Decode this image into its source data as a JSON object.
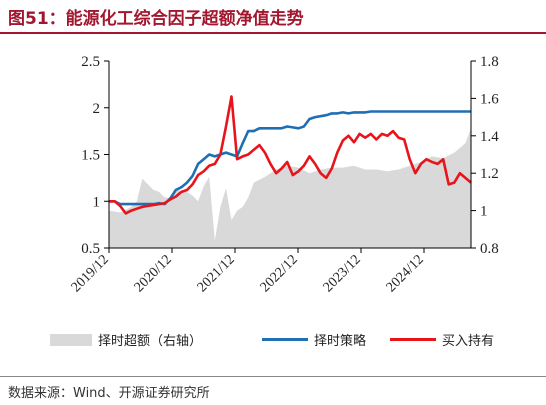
{
  "title": "图51：能源化工综合因子超额净值走势",
  "source": "数据来源：Wind、开源证券研究所",
  "colors": {
    "title": "#a2172f",
    "excess": "#d9d9d9",
    "timing": "#1f6fb5",
    "hold": "#e8141b"
  },
  "chart_data": {
    "type": "line",
    "x_ticks": [
      "2019/12",
      "2020/12",
      "2021/12",
      "2022/12",
      "2023/12",
      "2024/12"
    ],
    "x_range": [
      "2019-12",
      "2025-05"
    ],
    "ylim_left": [
      0.5,
      2.5
    ],
    "yticks_left": [
      "0.5",
      "1",
      "1.5",
      "2",
      "2.5"
    ],
    "ylim_right": [
      0.8,
      1.8
    ],
    "yticks_right": [
      "0.8",
      "1",
      "1.2",
      "1.4",
      "1.6",
      "1.8"
    ],
    "grid": false,
    "legend_position": "bottom",
    "series": [
      {
        "name": "择时超额（右轴）",
        "type": "area",
        "axis": "right",
        "x": [
          0,
          2,
          4,
          5,
          6,
          7,
          8,
          9,
          10,
          11,
          12,
          13,
          14,
          15,
          16,
          17,
          18,
          19,
          20,
          21,
          22,
          23,
          24,
          25,
          26,
          28,
          30,
          32,
          34,
          36,
          38,
          40,
          42,
          44,
          46,
          48,
          50,
          52,
          54,
          56,
          58,
          60,
          62,
          64,
          65
        ],
        "y": [
          1.0,
          0.99,
          1.02,
          1.05,
          1.17,
          1.14,
          1.11,
          1.1,
          1.07,
          1.07,
          1.12,
          1.1,
          1.1,
          1.08,
          1.05,
          1.13,
          1.18,
          0.84,
          1.02,
          1.12,
          0.95,
          1.0,
          1.02,
          1.07,
          1.15,
          1.18,
          1.22,
          1.24,
          1.23,
          1.2,
          1.22,
          1.23,
          1.23,
          1.24,
          1.22,
          1.22,
          1.21,
          1.22,
          1.24,
          1.26,
          1.29,
          1.28,
          1.31,
          1.36,
          1.44
        ]
      },
      {
        "name": "择时策略",
        "type": "line",
        "axis": "left",
        "x": [
          0,
          1,
          2,
          3,
          4,
          5,
          6,
          7,
          8,
          9,
          10,
          11,
          12,
          13,
          14,
          15,
          16,
          17,
          18,
          19,
          20,
          21,
          22,
          23,
          24,
          25,
          26,
          27,
          28,
          29,
          30,
          31,
          32,
          33,
          34,
          35,
          36,
          37,
          38,
          39,
          40,
          41,
          42,
          43,
          44,
          45,
          46,
          47,
          48,
          49,
          50,
          51,
          52,
          53,
          54,
          55,
          56,
          57,
          58,
          59,
          60,
          61,
          62,
          63,
          64,
          65
        ],
        "y": [
          1.0,
          1.0,
          0.97,
          0.97,
          0.97,
          0.97,
          0.97,
          0.97,
          0.97,
          0.98,
          0.97,
          1.03,
          1.12,
          1.15,
          1.2,
          1.27,
          1.4,
          1.45,
          1.5,
          1.48,
          1.5,
          1.52,
          1.5,
          1.48,
          1.62,
          1.75,
          1.75,
          1.78,
          1.78,
          1.78,
          1.78,
          1.78,
          1.8,
          1.79,
          1.78,
          1.8,
          1.88,
          1.9,
          1.91,
          1.92,
          1.94,
          1.94,
          1.95,
          1.94,
          1.95,
          1.95,
          1.95,
          1.96,
          1.96,
          1.96,
          1.96,
          1.96,
          1.96,
          1.96,
          1.96,
          1.96,
          1.96,
          1.96,
          1.96,
          1.96,
          1.96,
          1.96,
          1.96,
          1.96,
          1.96,
          1.96
        ]
      },
      {
        "name": "买入持有",
        "type": "line",
        "axis": "left",
        "x": [
          0,
          1,
          2,
          3,
          4,
          5,
          6,
          7,
          8,
          9,
          10,
          11,
          12,
          13,
          14,
          15,
          16,
          17,
          18,
          19,
          20,
          21,
          22,
          23,
          24,
          25,
          26,
          27,
          28,
          29,
          30,
          31,
          32,
          33,
          34,
          35,
          36,
          37,
          38,
          39,
          40,
          41,
          42,
          43,
          44,
          45,
          46,
          47,
          48,
          49,
          50,
          51,
          52,
          53,
          54,
          55,
          56,
          57,
          58,
          59,
          60,
          61,
          62,
          63,
          64,
          65
        ],
        "y": [
          1.0,
          1.0,
          0.95,
          0.87,
          0.9,
          0.92,
          0.94,
          0.95,
          0.96,
          0.97,
          0.98,
          1.02,
          1.05,
          1.1,
          1.12,
          1.18,
          1.28,
          1.32,
          1.38,
          1.4,
          1.5,
          1.8,
          2.12,
          1.45,
          1.48,
          1.5,
          1.55,
          1.6,
          1.52,
          1.4,
          1.3,
          1.35,
          1.42,
          1.28,
          1.32,
          1.38,
          1.48,
          1.4,
          1.3,
          1.25,
          1.35,
          1.52,
          1.65,
          1.7,
          1.63,
          1.72,
          1.68,
          1.72,
          1.66,
          1.72,
          1.7,
          1.75,
          1.68,
          1.66,
          1.45,
          1.3,
          1.4,
          1.45,
          1.42,
          1.4,
          1.45,
          1.18,
          1.2,
          1.3,
          1.25,
          1.2
        ]
      }
    ]
  }
}
